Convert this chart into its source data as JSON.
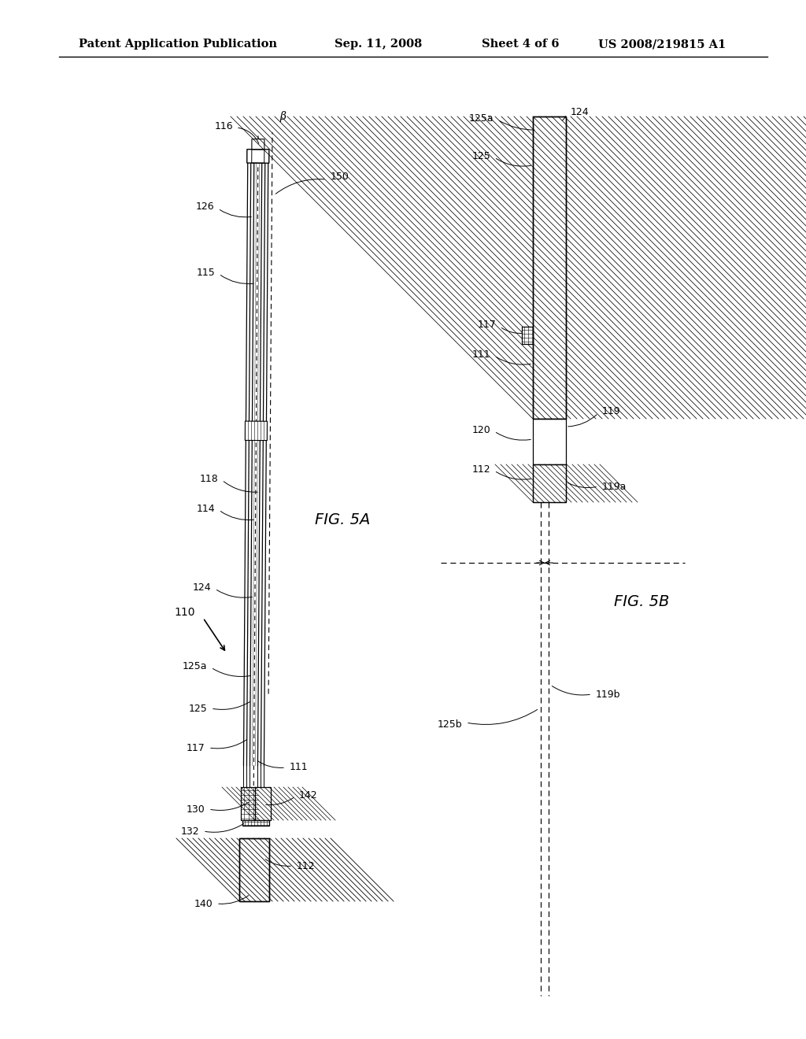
{
  "bg_color": "#ffffff",
  "header_text": "Patent Application Publication",
  "header_date": "Sep. 11, 2008",
  "header_sheet": "Sheet 4 of 6",
  "header_patent": "US 2008/219815 A1",
  "fig5a_label": "FIG. 5A",
  "fig5b_label": "FIG. 5B"
}
